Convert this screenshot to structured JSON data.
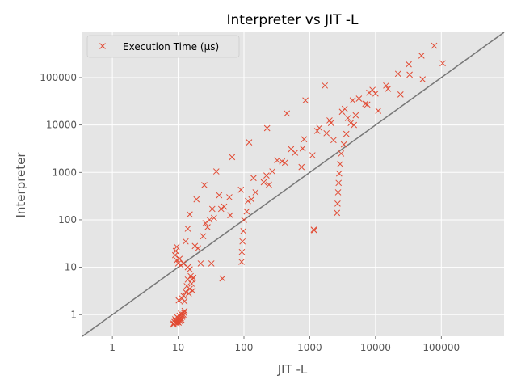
{
  "chart_data": {
    "type": "scatter",
    "title": "Interpreter vs JIT -L",
    "xlabel": "JIT -L",
    "ylabel": "Interpreter",
    "xscale": "log",
    "yscale": "log",
    "xlim": [
      0.35,
      900000
    ],
    "ylim": [
      0.35,
      900000
    ],
    "xticks": [
      {
        "value": 1,
        "label": "1"
      },
      {
        "value": 10,
        "label": "10"
      },
      {
        "value": 100,
        "label": "100"
      },
      {
        "value": 1000,
        "label": "1000"
      },
      {
        "value": 10000,
        "label": "10000"
      },
      {
        "value": 100000,
        "label": "100000"
      }
    ],
    "yticks": [
      {
        "value": 1,
        "label": "1"
      },
      {
        "value": 10,
        "label": "10"
      },
      {
        "value": 100,
        "label": "100"
      },
      {
        "value": 1000,
        "label": "1000"
      },
      {
        "value": 10000,
        "label": "10000"
      },
      {
        "value": 100000,
        "label": "100000"
      }
    ],
    "grid": true,
    "background": "#e5e5e5",
    "legend_position": "top-left",
    "reference_line": {
      "description": "y = x",
      "color": "#777777"
    },
    "series": [
      {
        "name": "Execution Time (µs)",
        "marker": "x",
        "color": "#e24a33",
        "points": [
          [
            8.5,
            0.65
          ],
          [
            8.8,
            0.7
          ],
          [
            9,
            0.68
          ],
          [
            9.2,
            0.72
          ],
          [
            9.5,
            0.66
          ],
          [
            9.8,
            0.7
          ],
          [
            10,
            0.75
          ],
          [
            10.2,
            0.68
          ],
          [
            10.5,
            0.8
          ],
          [
            10.8,
            0.72
          ],
          [
            11,
            0.85
          ],
          [
            11.2,
            0.78
          ],
          [
            11.5,
            0.9
          ],
          [
            11.8,
            0.95
          ],
          [
            12,
            1.0
          ],
          [
            12.2,
            1.1
          ],
          [
            12.5,
            1.2
          ],
          [
            9.5,
            0.9
          ],
          [
            10,
            0.85
          ],
          [
            10.5,
            0.95
          ],
          [
            11,
            1.05
          ],
          [
            9,
            0.8
          ],
          [
            10.2,
            2.0
          ],
          [
            11.5,
            2.2
          ],
          [
            12,
            2.5
          ],
          [
            12.5,
            1.9
          ],
          [
            13,
            3.0
          ],
          [
            13.5,
            4.0
          ],
          [
            14,
            5.5
          ],
          [
            14.5,
            2.8
          ],
          [
            15,
            3.5
          ],
          [
            15.5,
            6.5
          ],
          [
            16,
            4.5
          ],
          [
            16.3,
            5.5
          ],
          [
            16.6,
            3.2
          ],
          [
            17,
            6
          ],
          [
            15,
            9
          ],
          [
            14,
            10
          ],
          [
            12,
            12
          ],
          [
            11,
            11
          ],
          [
            10,
            12
          ],
          [
            9.5,
            14
          ],
          [
            9,
            18
          ],
          [
            9.2,
            22
          ],
          [
            9.5,
            27
          ],
          [
            10.5,
            15
          ],
          [
            13,
            35
          ],
          [
            14,
            65
          ],
          [
            15,
            130
          ],
          [
            18,
            28
          ],
          [
            19,
            270
          ],
          [
            20,
            25
          ],
          [
            22,
            12
          ],
          [
            24,
            45
          ],
          [
            26,
            85
          ],
          [
            28,
            70
          ],
          [
            30,
            100
          ],
          [
            32,
            12
          ],
          [
            33,
            170
          ],
          [
            35,
            110
          ],
          [
            25,
            540
          ],
          [
            38,
            1050
          ],
          [
            42,
            330
          ],
          [
            45,
            170
          ],
          [
            47,
            5.8
          ],
          [
            50,
            190
          ],
          [
            60,
            300
          ],
          [
            62,
            125
          ],
          [
            66,
            2100
          ],
          [
            90,
            430
          ],
          [
            92,
            13
          ],
          [
            93,
            21
          ],
          [
            95,
            35
          ],
          [
            98,
            58
          ],
          [
            100,
            100
          ],
          [
            110,
            150
          ],
          [
            115,
            250
          ],
          [
            120,
            4300
          ],
          [
            130,
            270
          ],
          [
            140,
            760
          ],
          [
            150,
            380
          ],
          [
            200,
            620
          ],
          [
            220,
            860
          ],
          [
            225,
            8600
          ],
          [
            240,
            550
          ],
          [
            270,
            1050
          ],
          [
            320,
            1800
          ],
          [
            380,
            1700
          ],
          [
            420,
            1600
          ],
          [
            450,
            17500
          ],
          [
            520,
            3100
          ],
          [
            600,
            2600
          ],
          [
            750,
            1300
          ],
          [
            780,
            3200
          ],
          [
            820,
            5000
          ],
          [
            860,
            33000
          ],
          [
            1100,
            2300
          ],
          [
            1150,
            62
          ],
          [
            1170,
            60
          ],
          [
            1300,
            7500
          ],
          [
            1400,
            8700
          ],
          [
            1700,
            68000
          ],
          [
            1800,
            6700
          ],
          [
            2000,
            12500
          ],
          [
            2100,
            11000
          ],
          [
            2300,
            4800
          ],
          [
            2600,
            140
          ],
          [
            2650,
            220
          ],
          [
            2700,
            380
          ],
          [
            2750,
            600
          ],
          [
            2800,
            950
          ],
          [
            2900,
            1500
          ],
          [
            3000,
            2500
          ],
          [
            3100,
            19000
          ],
          [
            3300,
            3900
          ],
          [
            3400,
            22000
          ],
          [
            3600,
            6500
          ],
          [
            3800,
            14000
          ],
          [
            4200,
            11000
          ],
          [
            4500,
            33000
          ],
          [
            4700,
            10000
          ],
          [
            5000,
            16000
          ],
          [
            5600,
            36000
          ],
          [
            7000,
            28000
          ],
          [
            7500,
            27000
          ],
          [
            8000,
            48000
          ],
          [
            9000,
            55000
          ],
          [
            10000,
            46000
          ],
          [
            11000,
            20000
          ],
          [
            14500,
            68000
          ],
          [
            15500,
            58000
          ],
          [
            22000,
            120000
          ],
          [
            24000,
            44000
          ],
          [
            32000,
            190000
          ],
          [
            33000,
            115000
          ],
          [
            50000,
            290000
          ],
          [
            52000,
            92000
          ],
          [
            78000,
            470000
          ],
          [
            105000,
            200000
          ],
          [
            8.5,
            0.62
          ]
        ]
      }
    ]
  }
}
